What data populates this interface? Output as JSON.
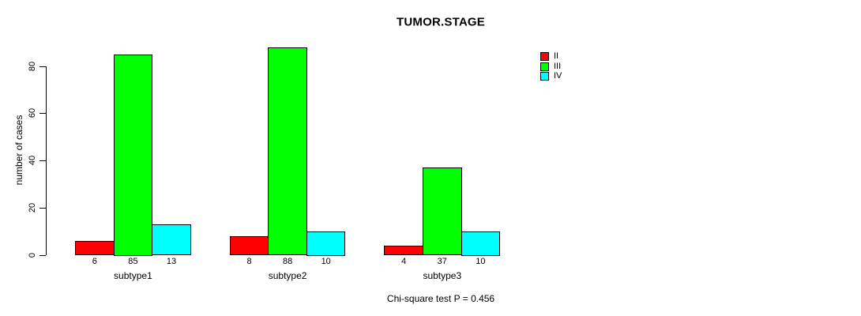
{
  "chart_data": {
    "type": "bar",
    "title": "TUMOR.STAGE",
    "ylabel": "number of cases",
    "xlabel": "",
    "categories": [
      "subtype1",
      "subtype2",
      "subtype3"
    ],
    "series": [
      {
        "name": "II",
        "color": "#ff0000",
        "values": [
          6,
          8,
          4
        ]
      },
      {
        "name": "III",
        "color": "#00ff00",
        "values": [
          85,
          88,
          37
        ]
      },
      {
        "name": "IV",
        "color": "#00ffff",
        "values": [
          13,
          10,
          10
        ]
      }
    ],
    "bar_value_labels": [
      [
        "6",
        "85",
        "13"
      ],
      [
        "8",
        "88",
        "10"
      ],
      [
        "4",
        "37",
        "10"
      ]
    ],
    "yticks": [
      0,
      20,
      40,
      60,
      80
    ],
    "ylim": [
      0,
      88
    ],
    "grid": false,
    "legend_position": "top-right",
    "legend_entries": [
      "II",
      "III",
      "IV"
    ],
    "annotation": "Chi-square test P = 0.456"
  },
  "colors": {
    "background": "#ffffff",
    "axis": "#000000",
    "text": "#000000",
    "stage_II": "#ff0000",
    "stage_III": "#00ff00",
    "stage_IV": "#00ffff"
  }
}
